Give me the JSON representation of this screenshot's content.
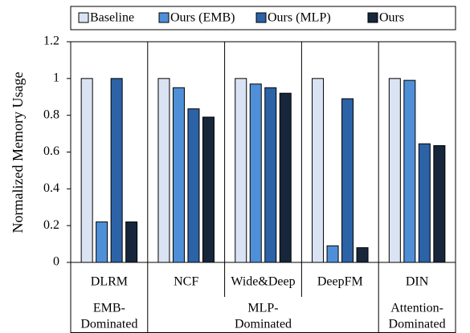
{
  "chart_data": {
    "type": "bar",
    "y_label": "Normalized Memory Usage",
    "categories": [
      "DLRM",
      "NCF",
      "Wide&Deep",
      "DeepFM",
      "DIN"
    ],
    "category_groups": [
      {
        "label_lines": [
          "EMB-",
          "Dominated"
        ],
        "members": [
          "DLRM"
        ]
      },
      {
        "label_lines": [
          "MLP-",
          "Dominated"
        ],
        "members": [
          "NCF",
          "Wide&Deep",
          "DeepFM"
        ]
      },
      {
        "label_lines": [
          "Attention-",
          "Dominated"
        ],
        "members": [
          "DIN"
        ]
      }
    ],
    "series": [
      {
        "name": "Baseline",
        "color": "#dae3f3",
        "values": [
          1,
          1,
          1,
          1,
          1
        ]
      },
      {
        "name": "Ours (EMB)",
        "color": "#4f8fd8",
        "values": [
          0.22,
          0.95,
          0.97,
          0.09,
          0.99
        ]
      },
      {
        "name": "Ours (MLP)",
        "color": "#2c62a6",
        "values": [
          1,
          0.835,
          0.95,
          0.89,
          0.645
        ]
      },
      {
        "name": "Ours",
        "color": "#17263b",
        "values": [
          0.22,
          0.79,
          0.92,
          0.08,
          0.635
        ]
      }
    ],
    "ylim": [
      0,
      1.2
    ],
    "yticks": [
      0,
      0.2,
      0.4,
      0.6,
      0.8,
      1,
      1.2
    ],
    "legend": "top"
  }
}
